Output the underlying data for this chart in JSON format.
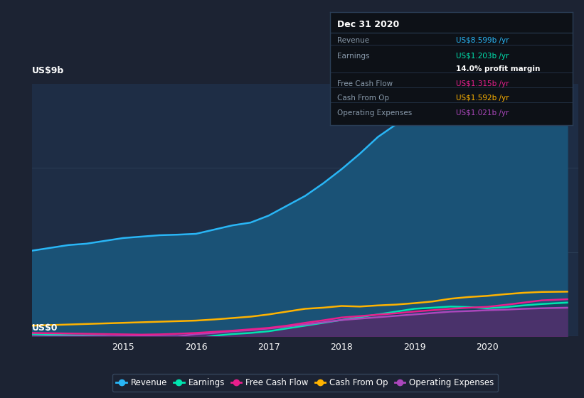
{
  "background_color": "#1c2333",
  "plot_bg_color": "#1e2d45",
  "ylim": [
    0,
    9
  ],
  "xlim": [
    2013.75,
    2021.25
  ],
  "grid_color": "#2a3d55",
  "ylabel_top": "US$9b",
  "ylabel_bottom": "US$0",
  "series": {
    "revenue": {
      "color": "#29b6f6",
      "fill_color": "#1a5276",
      "fill_alpha": 1.0,
      "label": "Revenue",
      "x": [
        2013.75,
        2014.0,
        2014.25,
        2014.5,
        2014.75,
        2015.0,
        2015.25,
        2015.5,
        2015.75,
        2016.0,
        2016.25,
        2016.5,
        2016.75,
        2017.0,
        2017.25,
        2017.5,
        2017.75,
        2018.0,
        2018.25,
        2018.5,
        2018.75,
        2019.0,
        2019.25,
        2019.5,
        2019.75,
        2020.0,
        2020.25,
        2020.5,
        2020.75,
        2021.1
      ],
      "y": [
        3.05,
        3.15,
        3.25,
        3.3,
        3.4,
        3.5,
        3.55,
        3.6,
        3.62,
        3.65,
        3.8,
        3.95,
        4.05,
        4.3,
        4.65,
        5.0,
        5.45,
        5.95,
        6.5,
        7.1,
        7.55,
        7.85,
        7.9,
        7.82,
        7.72,
        7.65,
        7.85,
        8.15,
        8.45,
        8.6
      ]
    },
    "earnings": {
      "color": "#00e5b0",
      "fill_color": "#1a3040",
      "fill_alpha": 0.5,
      "label": "Earnings",
      "x": [
        2013.75,
        2014.0,
        2014.25,
        2014.5,
        2014.75,
        2015.0,
        2015.25,
        2015.5,
        2015.75,
        2016.0,
        2016.25,
        2016.5,
        2016.75,
        2017.0,
        2017.25,
        2017.5,
        2017.75,
        2018.0,
        2018.25,
        2018.5,
        2018.75,
        2019.0,
        2019.25,
        2019.5,
        2019.75,
        2020.0,
        2020.25,
        2020.5,
        2020.75,
        2021.1
      ],
      "y": [
        0.08,
        0.06,
        0.04,
        0.02,
        0.01,
        -0.02,
        -0.06,
        -0.12,
        -0.15,
        -0.08,
        0.02,
        0.08,
        0.12,
        0.18,
        0.28,
        0.38,
        0.48,
        0.58,
        0.68,
        0.78,
        0.88,
        0.98,
        1.02,
        1.06,
        1.04,
        1.0,
        1.04,
        1.1,
        1.15,
        1.2
      ]
    },
    "free_cash_flow": {
      "color": "#e91e8c",
      "label": "Free Cash Flow",
      "x": [
        2013.75,
        2014.0,
        2014.25,
        2014.5,
        2014.75,
        2015.0,
        2015.25,
        2015.5,
        2015.75,
        2016.0,
        2016.25,
        2016.5,
        2016.75,
        2017.0,
        2017.25,
        2017.5,
        2017.75,
        2018.0,
        2018.25,
        2018.5,
        2018.75,
        2019.0,
        2019.25,
        2019.5,
        2019.75,
        2020.0,
        2020.25,
        2020.5,
        2020.75,
        2021.1
      ],
      "y": [
        0.12,
        0.11,
        0.1,
        0.09,
        0.08,
        0.07,
        0.06,
        0.07,
        0.09,
        0.12,
        0.16,
        0.2,
        0.25,
        0.3,
        0.38,
        0.48,
        0.57,
        0.67,
        0.72,
        0.77,
        0.82,
        0.88,
        0.93,
        0.98,
        1.02,
        1.05,
        1.12,
        1.2,
        1.28,
        1.32
      ]
    },
    "cash_from_op": {
      "color": "#ffb300",
      "label": "Cash From Op",
      "x": [
        2013.75,
        2014.0,
        2014.25,
        2014.5,
        2014.75,
        2015.0,
        2015.25,
        2015.5,
        2015.75,
        2016.0,
        2016.25,
        2016.5,
        2016.75,
        2017.0,
        2017.25,
        2017.5,
        2017.75,
        2018.0,
        2018.25,
        2018.5,
        2018.75,
        2019.0,
        2019.25,
        2019.5,
        2019.75,
        2020.0,
        2020.25,
        2020.5,
        2020.75,
        2021.1
      ],
      "y": [
        0.38,
        0.4,
        0.42,
        0.44,
        0.46,
        0.48,
        0.5,
        0.52,
        0.54,
        0.56,
        0.6,
        0.65,
        0.7,
        0.78,
        0.88,
        0.98,
        1.02,
        1.08,
        1.06,
        1.1,
        1.13,
        1.18,
        1.24,
        1.34,
        1.4,
        1.44,
        1.5,
        1.55,
        1.58,
        1.59
      ]
    },
    "operating_expenses": {
      "color": "#ab47bc",
      "fill_color": "#5b2c6f",
      "fill_alpha": 0.75,
      "label": "Operating Expenses",
      "x": [
        2013.75,
        2014.0,
        2014.25,
        2014.5,
        2014.75,
        2015.0,
        2015.25,
        2015.5,
        2015.75,
        2016.0,
        2016.25,
        2016.5,
        2016.75,
        2017.0,
        2017.25,
        2017.5,
        2017.75,
        2018.0,
        2018.25,
        2018.5,
        2018.75,
        2019.0,
        2019.25,
        2019.5,
        2019.75,
        2020.0,
        2020.25,
        2020.5,
        2020.75,
        2021.1
      ],
      "y": [
        0.0,
        0.0,
        0.0,
        0.0,
        0.0,
        0.0,
        0.0,
        0.0,
        0.0,
        0.08,
        0.12,
        0.18,
        0.22,
        0.28,
        0.35,
        0.42,
        0.5,
        0.58,
        0.63,
        0.68,
        0.73,
        0.78,
        0.83,
        0.88,
        0.9,
        0.93,
        0.95,
        0.98,
        1.0,
        1.02
      ]
    }
  },
  "info_box": {
    "title": "Dec 31 2020",
    "title_color": "#ffffff",
    "bg_color": "#0d1117",
    "border_color": "#2a3d55",
    "label_color": "#8899aa",
    "rows": [
      {
        "label": "Revenue",
        "value": "US$8.599b /yr",
        "value_color": "#29b6f6",
        "sep_below": true
      },
      {
        "label": "Earnings",
        "value": "US$1.203b /yr",
        "value_color": "#00e5b0",
        "sep_below": false
      },
      {
        "label": "",
        "value": "14.0% profit margin",
        "value_color": "#ffffff",
        "bold": true,
        "sep_below": true
      },
      {
        "label": "Free Cash Flow",
        "value": "US$1.315b /yr",
        "value_color": "#e91e8c",
        "sep_below": true
      },
      {
        "label": "Cash From Op",
        "value": "US$1.592b /yr",
        "value_color": "#ffb300",
        "sep_below": true
      },
      {
        "label": "Operating Expenses",
        "value": "US$1.021b /yr",
        "value_color": "#ab47bc",
        "sep_below": false
      }
    ]
  },
  "legend": {
    "items": [
      {
        "label": "Revenue",
        "color": "#29b6f6"
      },
      {
        "label": "Earnings",
        "color": "#00e5b0"
      },
      {
        "label": "Free Cash Flow",
        "color": "#e91e8c"
      },
      {
        "label": "Cash From Op",
        "color": "#ffb300"
      },
      {
        "label": "Operating Expenses",
        "color": "#ab47bc"
      }
    ],
    "bg_color": "#1c2333",
    "border_color": "#3a4d65",
    "text_color": "#ffffff"
  }
}
